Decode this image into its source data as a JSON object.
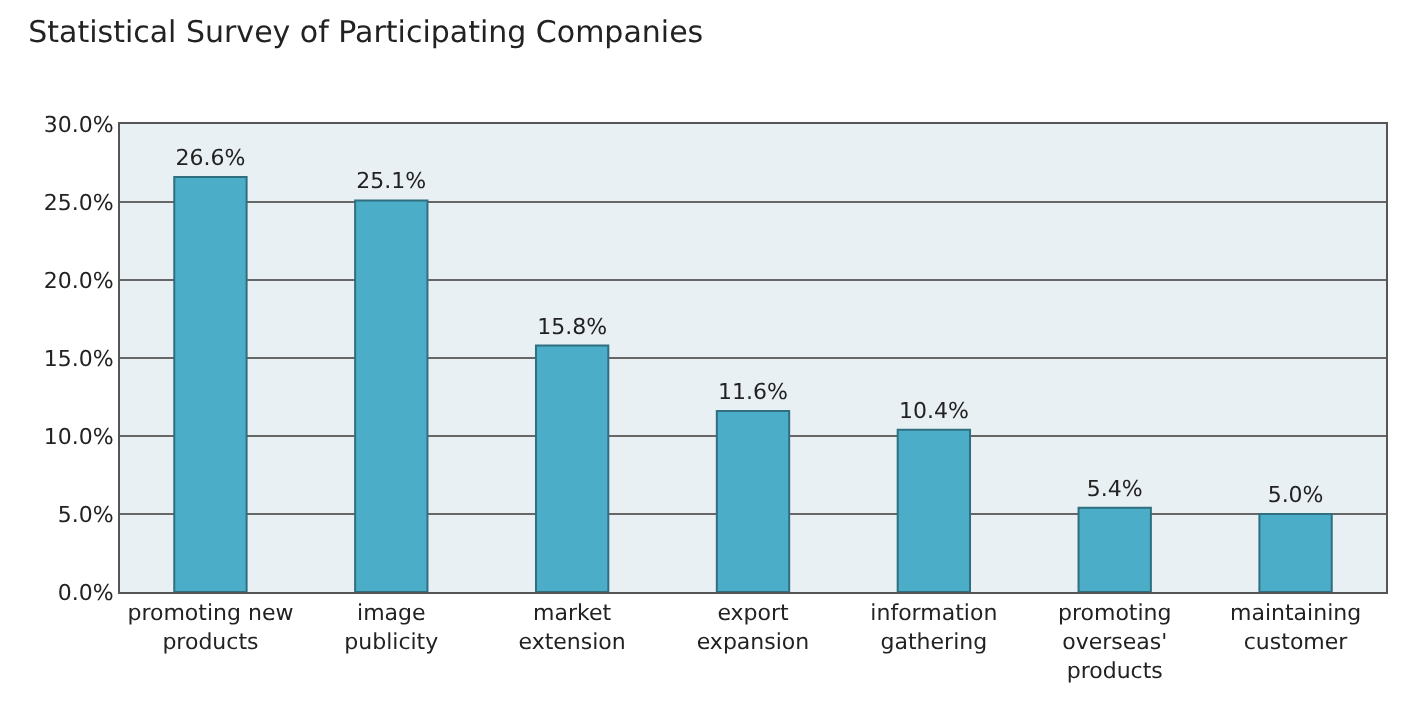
{
  "chart_data": {
    "type": "bar",
    "title": "Statistical Survey of Participating Companies",
    "categories": [
      "promoting new products",
      "image publicity",
      "market extension",
      "export expansion",
      "information gathering",
      "promoting overseas' products",
      "maintaining customer"
    ],
    "values": [
      26.6,
      25.1,
      15.8,
      11.6,
      10.4,
      5.4,
      5.0
    ],
    "value_labels": [
      "26.6%",
      "25.1%",
      "15.8%",
      "11.6%",
      "10.4%",
      "5.4%",
      "5.0%"
    ],
    "color": "#4badc8",
    "ylim": [
      0,
      30
    ],
    "yticks": [
      {
        "value": 0,
        "label": "0.0%"
      },
      {
        "value": 5,
        "label": "5.0%"
      },
      {
        "value": 10,
        "label": "10.0%"
      },
      {
        "value": 15,
        "label": "15.0%"
      },
      {
        "value": 20,
        "label": "20.0%"
      },
      {
        "value": 25,
        "label": "25.0%"
      },
      {
        "value": 30,
        "label": "30.0%"
      }
    ],
    "grid": "y",
    "legend": false
  }
}
